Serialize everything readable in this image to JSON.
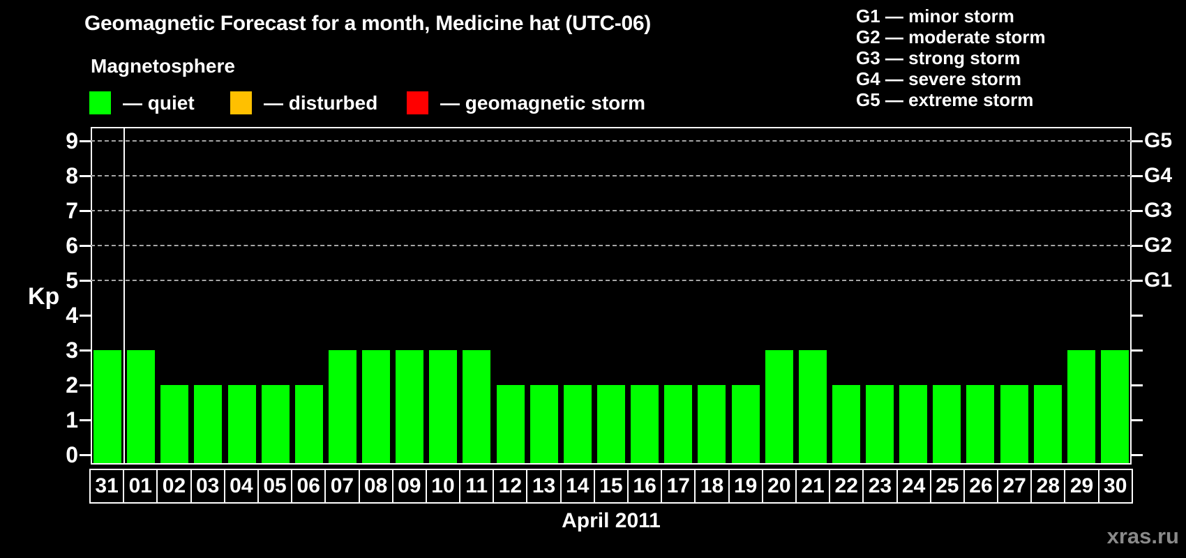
{
  "title": "Geomagnetic Forecast for a month, Medicine hat (UTC-06)",
  "legend": {
    "heading": "Magnetosphere",
    "items": [
      {
        "name": "quiet",
        "label": "— quiet",
        "color": "#00ff00"
      },
      {
        "name": "disturbed",
        "label": "— disturbed",
        "color": "#ffc000"
      },
      {
        "name": "geomagnetic-storm",
        "label": "— geomagnetic storm",
        "color": "#ff0000"
      }
    ]
  },
  "storm_scale": [
    "G1 — minor storm",
    "G2 — moderate storm",
    "G3 — strong storm",
    "G4 — severe storm",
    "G5 — extreme storm"
  ],
  "chart_data": {
    "type": "bar",
    "title": "Geomagnetic Forecast for a month, Medicine hat (UTC-06)",
    "xlabel": "April 2011",
    "ylabel": "Kp",
    "ylim": [
      0,
      9.4
    ],
    "yticks": [
      0,
      1,
      2,
      3,
      4,
      5,
      6,
      7,
      8,
      9
    ],
    "grid_levels": [
      5,
      6,
      7,
      8,
      9
    ],
    "grid_style": "dashed",
    "right_axis": [
      {
        "kp": 5,
        "label": "G1"
      },
      {
        "kp": 6,
        "label": "G2"
      },
      {
        "kp": 7,
        "label": "G3"
      },
      {
        "kp": 8,
        "label": "G4"
      },
      {
        "kp": 9,
        "label": "G5"
      }
    ],
    "categories": [
      "31",
      "01",
      "02",
      "03",
      "04",
      "05",
      "06",
      "07",
      "08",
      "09",
      "10",
      "11",
      "12",
      "13",
      "14",
      "15",
      "16",
      "17",
      "18",
      "19",
      "20",
      "21",
      "22",
      "23",
      "24",
      "25",
      "26",
      "27",
      "28",
      "29",
      "30"
    ],
    "values": [
      3,
      3,
      2,
      2,
      2,
      2,
      2,
      3,
      3,
      3,
      3,
      3,
      2,
      2,
      2,
      2,
      2,
      2,
      2,
      2,
      3,
      3,
      2,
      2,
      2,
      2,
      2,
      2,
      2,
      3,
      3
    ],
    "bar_color": "#00ff00",
    "month_separator_after_category": "31",
    "legend_position": "top-left"
  },
  "watermark": "xras.ru",
  "colors": {
    "background": "#000000",
    "axis": "#ffffff",
    "grid": "#a6a6a6",
    "quiet": "#00ff00",
    "disturbed": "#ffc000",
    "storm": "#ff0000",
    "watermark": "#8a8a8a"
  }
}
